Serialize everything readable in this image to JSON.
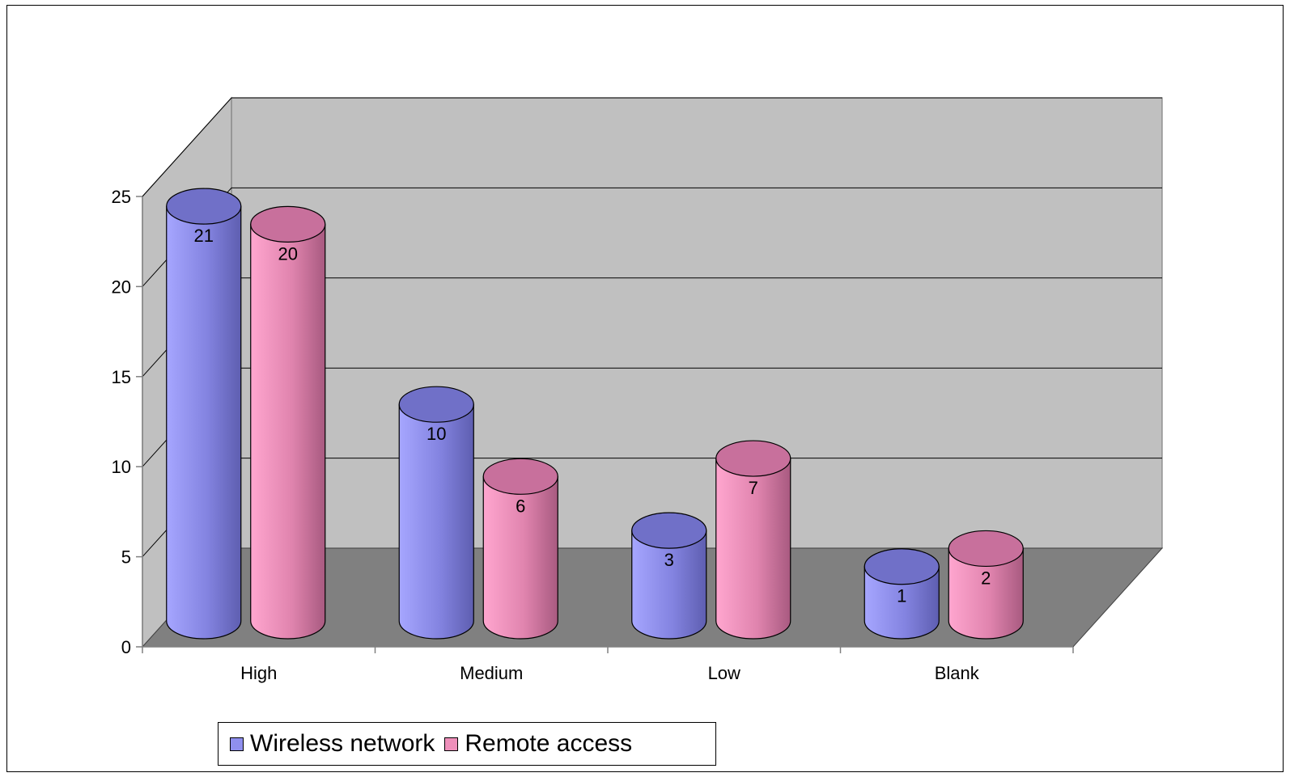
{
  "chart_data": {
    "type": "bar",
    "style": "3d-cylinder",
    "categories": [
      "High",
      "Medium",
      "Low",
      "Blank"
    ],
    "series": [
      {
        "name": "Wireless network",
        "values": [
          21,
          10,
          3,
          1
        ],
        "color": "#8f8fee"
      },
      {
        "name": "Remote access",
        "values": [
          20,
          6,
          7,
          2
        ],
        "color": "#ee8fba"
      }
    ],
    "ylim": [
      0,
      25
    ],
    "yticks": [
      0,
      5,
      10,
      15,
      20,
      25
    ],
    "ytick_labels": [
      "0",
      "5",
      "10",
      "15",
      "20",
      "25"
    ],
    "data_labels": true,
    "grid": true,
    "legend": "bottom-left",
    "wall_color": "#c0c0c0",
    "floor_color": "#808080"
  }
}
